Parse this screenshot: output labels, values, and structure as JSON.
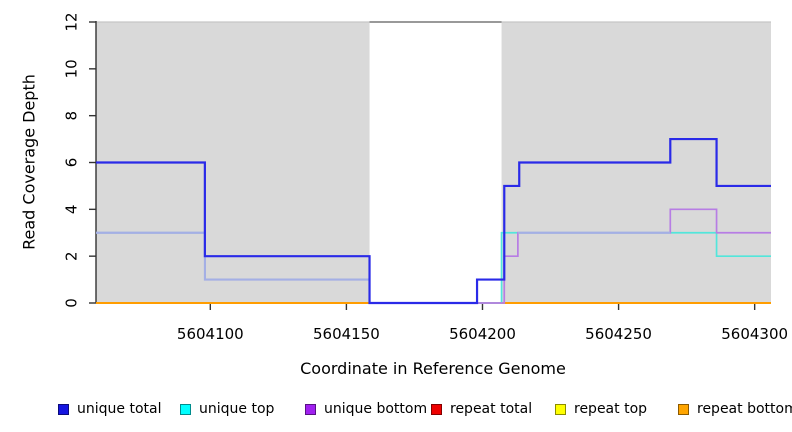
{
  "chart_data": {
    "type": "line",
    "subtype": "step-coverage",
    "title": "",
    "xlabel": "Coordinate in Reference Genome",
    "ylabel": "Read Coverage Depth",
    "xlim": [
      5604058,
      5604306
    ],
    "ylim": [
      0,
      12
    ],
    "x_ticks": [
      5604100,
      5604150,
      5604200,
      5604250,
      5604300
    ],
    "y_ticks": [
      0,
      2,
      4,
      6,
      8,
      10,
      12
    ],
    "grid": false,
    "axis_color": "#333333",
    "background_bands": {
      "color": "#d9d9d9",
      "regions": [
        [
          5604058,
          5604158.5
        ],
        [
          5604207,
          5604306
        ]
      ]
    },
    "clipped_top_segment": {
      "y": 12,
      "x": [
        5604158.5,
        5604207
      ],
      "color": "#999999",
      "band_top_edge_color": "#c6c6c6"
    },
    "series": [
      {
        "name": "repeat total",
        "color": "#dd0000",
        "width": 1.5,
        "steps": [
          [
            5604058,
            0
          ],
          [
            5604306,
            0
          ]
        ]
      },
      {
        "name": "repeat top",
        "color": "#ffff00",
        "width": 1.5,
        "steps": [
          [
            5604058,
            0
          ],
          [
            5604306,
            0
          ]
        ]
      },
      {
        "name": "repeat bottom",
        "color": "#ff9d00",
        "width": 2,
        "steps": [
          [
            5604058,
            0
          ],
          [
            5604306,
            0
          ]
        ]
      },
      {
        "name": "unique top",
        "color": "#52e6db",
        "width": 1.7,
        "steps": [
          [
            5604058,
            3
          ],
          [
            5604098,
            1
          ],
          [
            5604158.5,
            0
          ],
          [
            5604207,
            3
          ],
          [
            5604286,
            2
          ],
          [
            5604306,
            2
          ]
        ]
      },
      {
        "name": "unique bottom",
        "color": "#b77de4",
        "width": 1.7,
        "steps": [
          [
            5604058,
            3
          ],
          [
            5604098,
            1
          ],
          [
            5604158.5,
            0
          ],
          [
            5604208,
            2
          ],
          [
            5604213,
            3
          ],
          [
            5604269,
            4
          ],
          [
            5604286,
            3
          ],
          [
            5604306,
            3
          ]
        ]
      },
      {
        "name": "unique total",
        "color": "#2a2ae8",
        "width": 2.2,
        "steps": [
          [
            5604058,
            6
          ],
          [
            5604098,
            2
          ],
          [
            5604158.5,
            0
          ],
          [
            5604198,
            1
          ],
          [
            5604208,
            5
          ],
          [
            5604213.5,
            6
          ],
          [
            5604269,
            7
          ],
          [
            5604286,
            5
          ],
          [
            5604306,
            5
          ]
        ]
      }
    ],
    "overlap_segments": {
      "comment": "where unique top and unique bottom coincide the line renders periwinkle",
      "color": "#a4afe5",
      "width": 2,
      "segments": [
        [
          [
            5604058,
            3
          ],
          [
            5604098,
            1
          ],
          [
            5604158.5,
            1
          ]
        ],
        [
          [
            5604213,
            3
          ],
          [
            5604269,
            3
          ]
        ]
      ]
    },
    "legend": [
      {
        "label": "unique total",
        "color": "#1515e0"
      },
      {
        "label": "unique top",
        "color": "#00ffff"
      },
      {
        "label": "unique bottom",
        "color": "#a020f0"
      },
      {
        "label": "repeat total",
        "color": "#ee0000"
      },
      {
        "label": "repeat top",
        "color": "#ffff00"
      },
      {
        "label": "repeat bottom",
        "color": "#ffa500"
      }
    ]
  }
}
